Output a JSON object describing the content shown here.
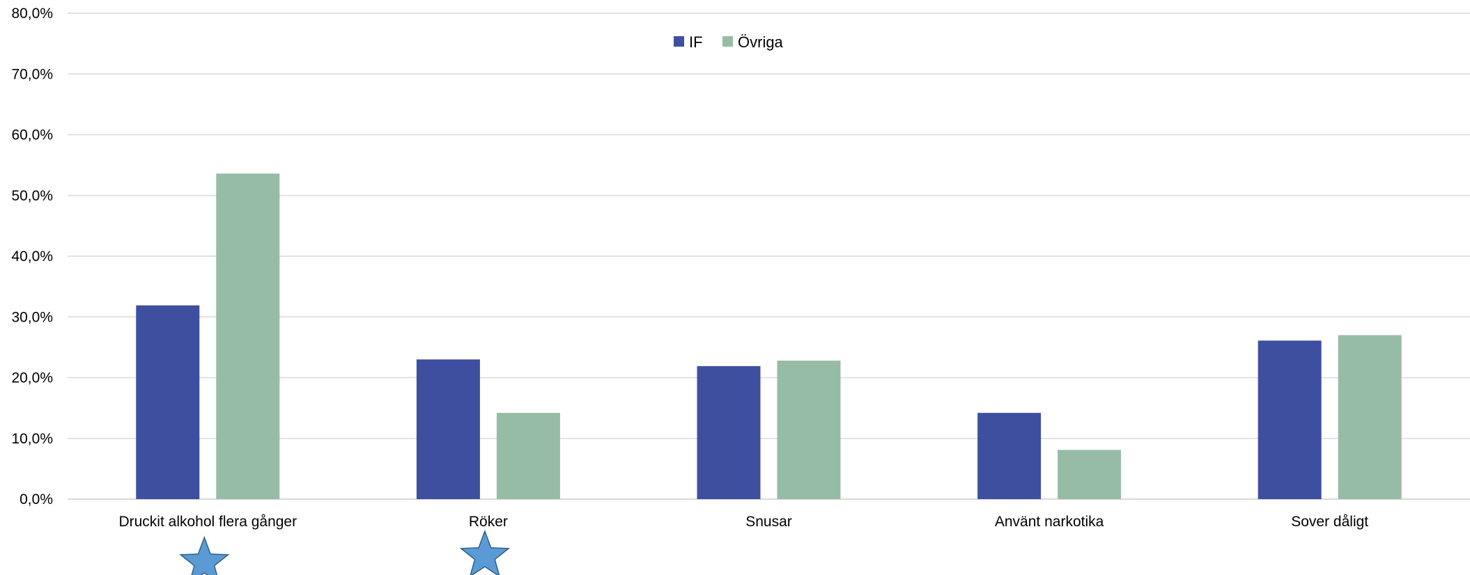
{
  "chart_data": {
    "type": "bar",
    "title": "",
    "xlabel": "",
    "ylabel": "",
    "categories": [
      "Druckit alkohol flera gånger",
      "Röker",
      "Snusar",
      "Använt narkotika",
      "Sover dåligt"
    ],
    "series": [
      {
        "name": "IF",
        "color": "#3f4f9f",
        "values": [
          31.9,
          23.0,
          21.9,
          14.2,
          26.1
        ]
      },
      {
        "name": "Övriga",
        "color": "#97bca6",
        "values": [
          53.6,
          14.2,
          22.8,
          8.1,
          27.0
        ]
      }
    ],
    "ylim": [
      0,
      80
    ],
    "yticks": [
      "0,0%",
      "10,0%",
      "20,0%",
      "30,0%",
      "40,0%",
      "50,0%",
      "60,0%",
      "70,0%",
      "80,0%"
    ],
    "grid": true,
    "legend": "top-center",
    "annotations": [
      {
        "type": "star-icon",
        "category": "Druckit alkohol flera gånger",
        "color": "#5b9bd5"
      },
      {
        "type": "star-icon",
        "category": "Röker",
        "color": "#5b9bd5"
      }
    ]
  }
}
